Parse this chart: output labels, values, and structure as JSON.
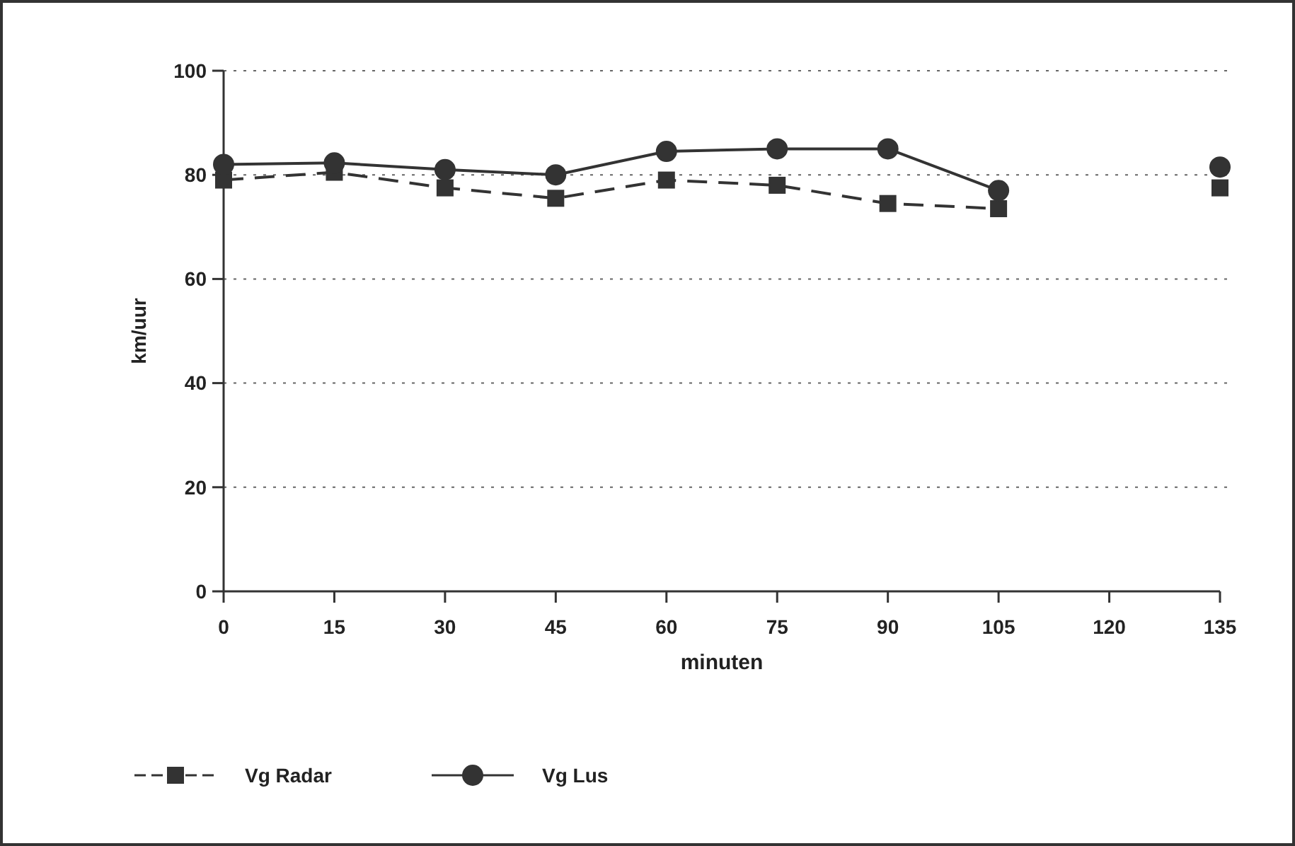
{
  "chart_data": {
    "type": "line",
    "xlabel": "minuten",
    "ylabel": "km/uur",
    "x": [
      0,
      15,
      30,
      45,
      60,
      75,
      90,
      105,
      120,
      135
    ],
    "xlim": [
      0,
      135
    ],
    "xticks": [
      0,
      15,
      30,
      45,
      60,
      75,
      90,
      105,
      120,
      135
    ],
    "ylim": [
      0,
      100
    ],
    "yticks": [
      0,
      20,
      40,
      60,
      80,
      100
    ],
    "grid": "y",
    "legend": "bottom left",
    "series": [
      {
        "name": "Vg Radar",
        "color": "#333333",
        "marker": "square",
        "line_style": "dashed",
        "values": [
          79,
          80.5,
          77.5,
          75.5,
          79,
          78,
          74.5,
          73.5,
          null,
          77.5
        ]
      },
      {
        "name": "Vg Lus",
        "color": "#333333",
        "marker": "circle",
        "line_style": "solid",
        "values": [
          82,
          82.3,
          81,
          80,
          84.5,
          85,
          85,
          77,
          null,
          81.5
        ]
      }
    ]
  }
}
